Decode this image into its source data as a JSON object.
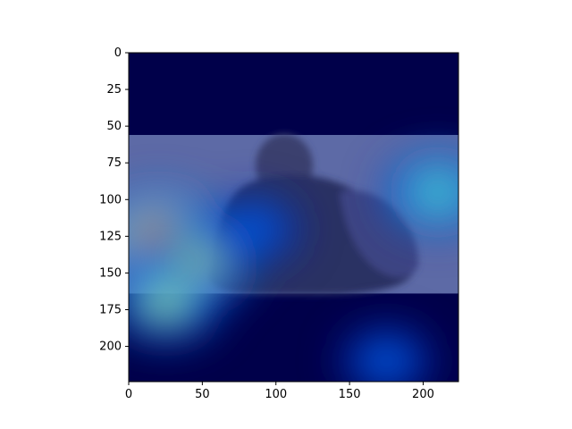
{
  "chart_data": {
    "type": "heatmap",
    "title": "",
    "xlabel": "",
    "ylabel": "",
    "xlim": [
      0,
      224
    ],
    "ylim": [
      224,
      0
    ],
    "grid": false,
    "legend": "none",
    "xticks": [
      0,
      50,
      100,
      150,
      200
    ],
    "yticks": [
      0,
      25,
      50,
      75,
      100,
      125,
      150,
      175,
      200
    ],
    "xtick_labels": [
      "0",
      "50",
      "100",
      "150",
      "200"
    ],
    "ytick_labels": [
      "0",
      "25",
      "50",
      "75",
      "100",
      "125",
      "150",
      "175",
      "200"
    ],
    "colormap": "jet",
    "background_image": {
      "description_icon": "engraved-portrait-photo",
      "y_range": [
        56,
        164
      ]
    },
    "hotspots": [
      {
        "x": 20,
        "y": 125,
        "intensity": 1.0
      },
      {
        "x": 45,
        "y": 145,
        "intensity": 0.75
      },
      {
        "x": 25,
        "y": 170,
        "intensity": 0.7
      },
      {
        "x": 210,
        "y": 95,
        "intensity": 0.65
      },
      {
        "x": 175,
        "y": 210,
        "intensity": 0.35
      },
      {
        "x": 85,
        "y": 120,
        "intensity": 0.35
      }
    ]
  }
}
